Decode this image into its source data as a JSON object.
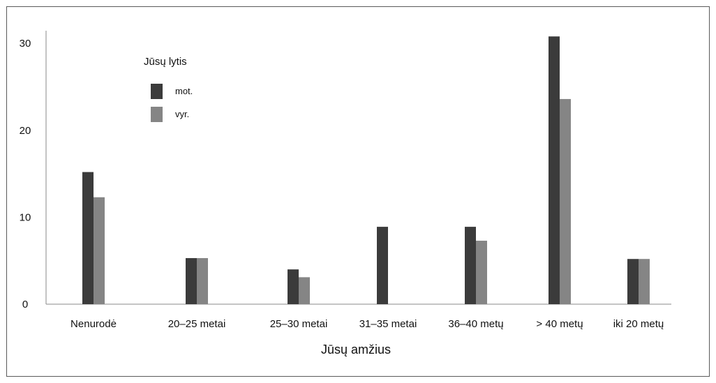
{
  "chart_data": {
    "type": "bar",
    "categories": [
      "Nenurodė",
      "20–25 metai",
      "25–30 metai",
      "31–35 metai",
      "36–40 metų",
      "> 40 metų",
      "iki 20 metų"
    ],
    "series": [
      {
        "name": "mot.",
        "values": [
          15.2,
          5.3,
          4.0,
          8.9,
          8.9,
          30.8,
          5.2
        ],
        "color": "#3b3b3b"
      },
      {
        "name": "vyr.",
        "values": [
          12.3,
          5.3,
          3.1,
          0,
          7.3,
          23.6,
          5.2
        ],
        "color": "#858585"
      }
    ],
    "xlabel": "Jūsų amžius",
    "ylabel": "",
    "ylim": [
      0,
      31.5
    ],
    "yticks": [
      0,
      10,
      20,
      30
    ],
    "legend": {
      "title": "Jūsų lytis",
      "position": "top-left"
    },
    "grid": false
  }
}
